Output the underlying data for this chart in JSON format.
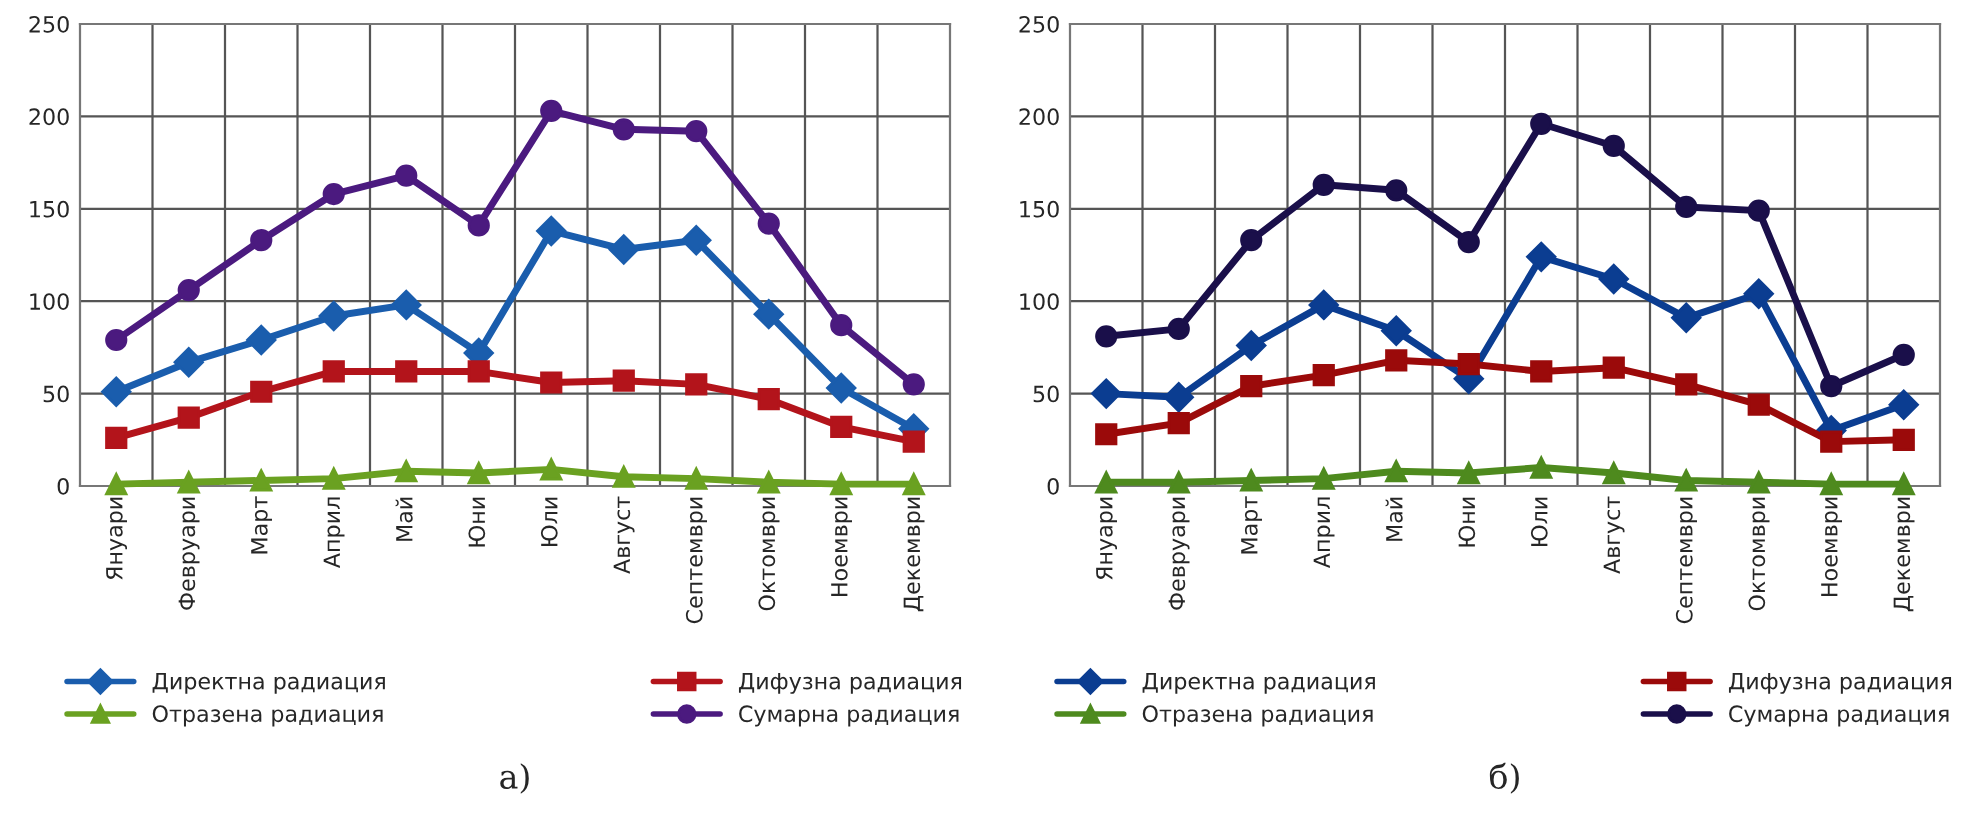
{
  "chart_data": [
    {
      "type": "line",
      "categories": [
        "Януари",
        "Февруари",
        "Март",
        "Април",
        "Май",
        "Юни",
        "Юли",
        "Август",
        "Септември",
        "Октомври",
        "Ноември",
        "Декември"
      ],
      "series": [
        {
          "name": "Директна радиация",
          "color": "#1a5dad",
          "marker": "diamond",
          "values": [
            51,
            67,
            79,
            92,
            98,
            72,
            138,
            128,
            133,
            93,
            53,
            31
          ]
        },
        {
          "name": "Дифузна радиация",
          "color": "#b3141b",
          "marker": "square",
          "values": [
            26,
            37,
            51,
            62,
            62,
            62,
            56,
            57,
            55,
            47,
            32,
            24
          ]
        },
        {
          "name": "Отразена радиация",
          "color": "#6aa121",
          "marker": "triangle",
          "values": [
            1,
            2,
            3,
            4,
            8,
            7,
            9,
            5,
            4,
            2,
            1,
            1
          ]
        },
        {
          "name": "Сумарна радиация",
          "color": "#4b1a7f",
          "marker": "circle",
          "values": [
            79,
            106,
            133,
            158,
            168,
            141,
            203,
            193,
            192,
            142,
            87,
            55
          ]
        }
      ],
      "ylim": [
        0,
        250
      ],
      "yticks": [
        0,
        50,
        100,
        150,
        200,
        250
      ],
      "grid": true,
      "legend": "bottom",
      "line_style": "solid",
      "annotations": [
        "а)"
      ]
    },
    {
      "type": "line",
      "categories": [
        "Януари",
        "Февруари",
        "Март",
        "Април",
        "Май",
        "Юни",
        "Юли",
        "Август",
        "Септември",
        "Октомври",
        "Ноември",
        "Декември"
      ],
      "series": [
        {
          "name": "Директна радиация",
          "color": "#0b3d91",
          "marker": "diamond",
          "values": [
            50,
            48,
            76,
            98,
            84,
            58,
            124,
            112,
            91,
            104,
            30,
            44
          ]
        },
        {
          "name": "Дифузна радиация",
          "color": "#9b0a0a",
          "marker": "square",
          "values": [
            28,
            34,
            54,
            60,
            68,
            66,
            62,
            64,
            55,
            44,
            24,
            25
          ]
        },
        {
          "name": "Отразена радиация",
          "color": "#4e8a1e",
          "marker": "triangle",
          "values": [
            2,
            2,
            3,
            4,
            8,
            7,
            10,
            7,
            3,
            2,
            1,
            1
          ]
        },
        {
          "name": "Сумарна радиация",
          "color": "#1a0f4a",
          "marker": "circle",
          "values": [
            81,
            85,
            133,
            163,
            160,
            132,
            196,
            184,
            151,
            149,
            54,
            71
          ]
        }
      ],
      "ylim": [
        0,
        250
      ],
      "yticks": [
        0,
        50,
        100,
        150,
        200,
        250
      ],
      "grid": true,
      "legend": "bottom",
      "line_style": "solid",
      "annotations": [
        "б)"
      ]
    }
  ]
}
